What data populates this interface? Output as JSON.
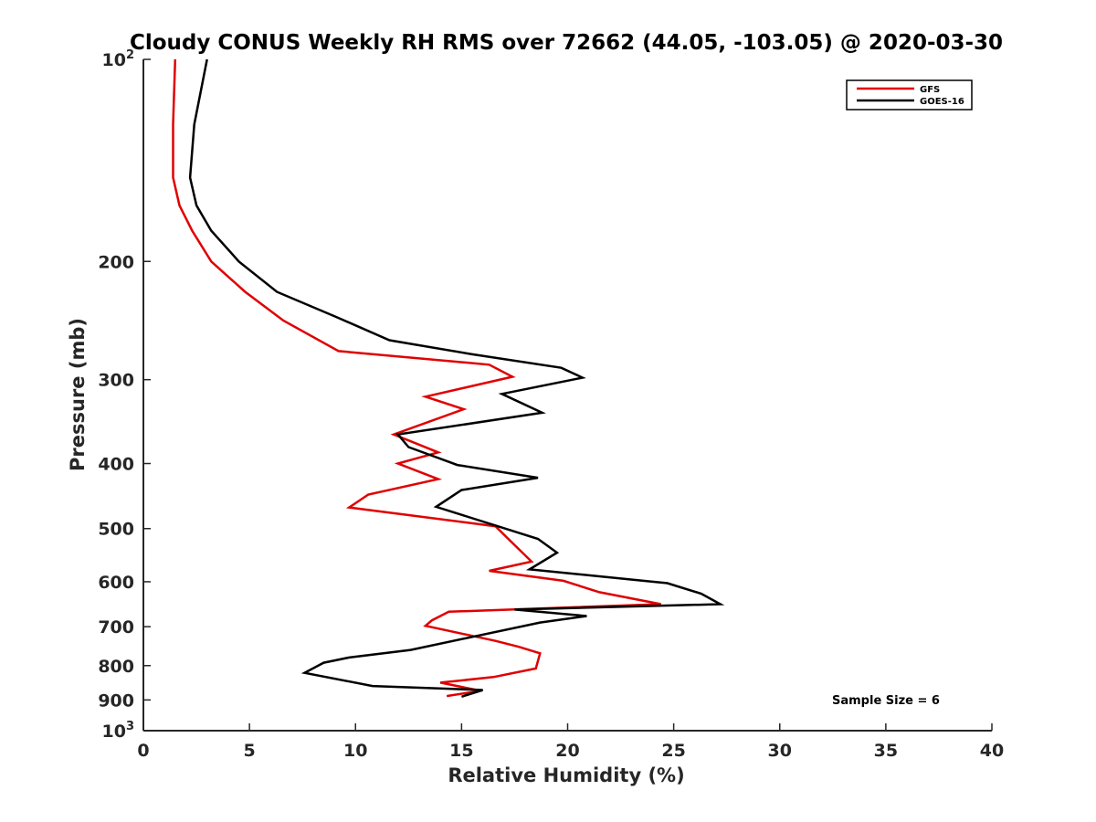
{
  "chart_data": {
    "type": "line",
    "title": "Cloudy CONUS Weekly RH RMS over 72662 (44.05, -103.05) @ 2020-03-30",
    "xlabel": "Relative Humidity (%)",
    "ylabel": "Pressure (mb)",
    "xlim": [
      0,
      40
    ],
    "ylim": [
      100,
      1000
    ],
    "y_scale": "log",
    "y_reversed": true,
    "grid": false,
    "legend_position": "top-right",
    "x_ticks": [
      {
        "value": 0,
        "label": "0"
      },
      {
        "value": 5,
        "label": "5"
      },
      {
        "value": 10,
        "label": "10"
      },
      {
        "value": 15,
        "label": "15"
      },
      {
        "value": 20,
        "label": "20"
      },
      {
        "value": 25,
        "label": "25"
      },
      {
        "value": 30,
        "label": "30"
      },
      {
        "value": 35,
        "label": "35"
      },
      {
        "value": 40,
        "label": "40"
      }
    ],
    "y_ticks": [
      {
        "value": 100,
        "label": "10",
        "sup": "2"
      },
      {
        "value": 200,
        "label": "200",
        "sup": ""
      },
      {
        "value": 300,
        "label": "300",
        "sup": ""
      },
      {
        "value": 400,
        "label": "400",
        "sup": ""
      },
      {
        "value": 500,
        "label": "500",
        "sup": ""
      },
      {
        "value": 600,
        "label": "600",
        "sup": ""
      },
      {
        "value": 700,
        "label": "700",
        "sup": ""
      },
      {
        "value": 800,
        "label": "800",
        "sup": ""
      },
      {
        "value": 900,
        "label": "900",
        "sup": ""
      },
      {
        "value": 1000,
        "label": "10",
        "sup": "3"
      }
    ],
    "annotation": "Sample Size = 6",
    "series": [
      {
        "name": "GFS",
        "color": "#e00000",
        "points": [
          [
            1.5,
            100
          ],
          [
            1.4,
            125
          ],
          [
            1.4,
            150
          ],
          [
            1.7,
            165
          ],
          [
            2.3,
            180
          ],
          [
            3.2,
            200
          ],
          [
            4.8,
            222
          ],
          [
            6.6,
            245
          ],
          [
            9.2,
            272
          ],
          [
            16.3,
            285
          ],
          [
            17.4,
            297
          ],
          [
            13.3,
            318
          ],
          [
            15.1,
            332
          ],
          [
            11.8,
            362
          ],
          [
            13.9,
            385
          ],
          [
            12.0,
            400
          ],
          [
            13.9,
            422
          ],
          [
            10.6,
            445
          ],
          [
            9.7,
            465
          ],
          [
            16.6,
            496
          ],
          [
            17.2,
            518
          ],
          [
            18.3,
            560
          ],
          [
            16.3,
            578
          ],
          [
            19.8,
            598
          ],
          [
            21.5,
            622
          ],
          [
            24.4,
            648
          ],
          [
            14.4,
            665
          ],
          [
            13.6,
            685
          ],
          [
            13.3,
            698
          ],
          [
            16.6,
            735
          ],
          [
            17.7,
            750
          ],
          [
            18.7,
            767
          ],
          [
            18.5,
            808
          ],
          [
            16.5,
            832
          ],
          [
            14.0,
            848
          ],
          [
            15.9,
            872
          ],
          [
            14.3,
            888
          ]
        ]
      },
      {
        "name": "GOES-16",
        "color": "#000000",
        "points": [
          [
            3.0,
            100
          ],
          [
            2.4,
            125
          ],
          [
            2.2,
            150
          ],
          [
            2.5,
            165
          ],
          [
            3.2,
            180
          ],
          [
            4.5,
            200
          ],
          [
            6.3,
            222
          ],
          [
            9.1,
            242
          ],
          [
            11.6,
            262
          ],
          [
            15.5,
            275
          ],
          [
            19.7,
            288
          ],
          [
            20.7,
            298
          ],
          [
            16.9,
            315
          ],
          [
            18.8,
            336
          ],
          [
            12.0,
            362
          ],
          [
            12.5,
            378
          ],
          [
            14.8,
            402
          ],
          [
            18.6,
            420
          ],
          [
            15.0,
            438
          ],
          [
            13.8,
            464
          ],
          [
            18.6,
            518
          ],
          [
            19.5,
            543
          ],
          [
            18.2,
            575
          ],
          [
            24.7,
            603
          ],
          [
            26.3,
            625
          ],
          [
            27.2,
            648
          ],
          [
            17.5,
            660
          ],
          [
            20.9,
            675
          ],
          [
            18.7,
            690
          ],
          [
            12.6,
            758
          ],
          [
            9.7,
            778
          ],
          [
            8.5,
            792
          ],
          [
            7.6,
            820
          ],
          [
            10.8,
            858
          ],
          [
            16.0,
            870
          ],
          [
            15.0,
            890
          ]
        ]
      }
    ]
  }
}
